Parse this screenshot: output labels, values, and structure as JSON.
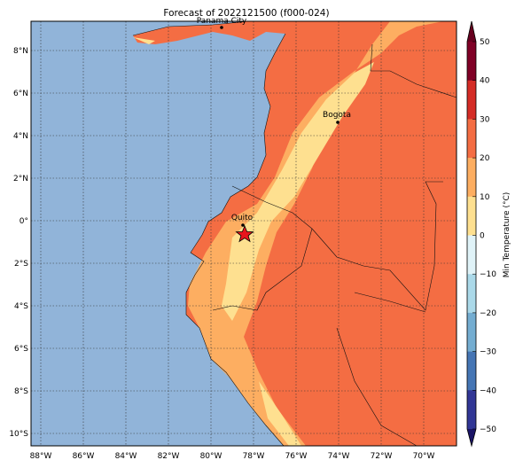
{
  "title": "Forecast of 2022121500 (f000-024)",
  "map": {
    "lon_labels": [
      "88°W",
      "86°W",
      "84°W",
      "82°W",
      "80°W",
      "78°W",
      "76°W",
      "74°W",
      "72°W",
      "70°W"
    ],
    "lat_labels": [
      "8°N",
      "6°N",
      "4°N",
      "2°N",
      "0°",
      "2°S",
      "4°S",
      "6°S",
      "8°S",
      "10°S"
    ],
    "cities": [
      "Panama City",
      "Bogota",
      "Quito"
    ]
  },
  "colorbar": {
    "label": "Min Temperature (°C)",
    "ticks": [
      "50",
      "40",
      "30",
      "20",
      "10",
      "0",
      "−10",
      "−20",
      "−30",
      "−40",
      "−50"
    ]
  }
}
